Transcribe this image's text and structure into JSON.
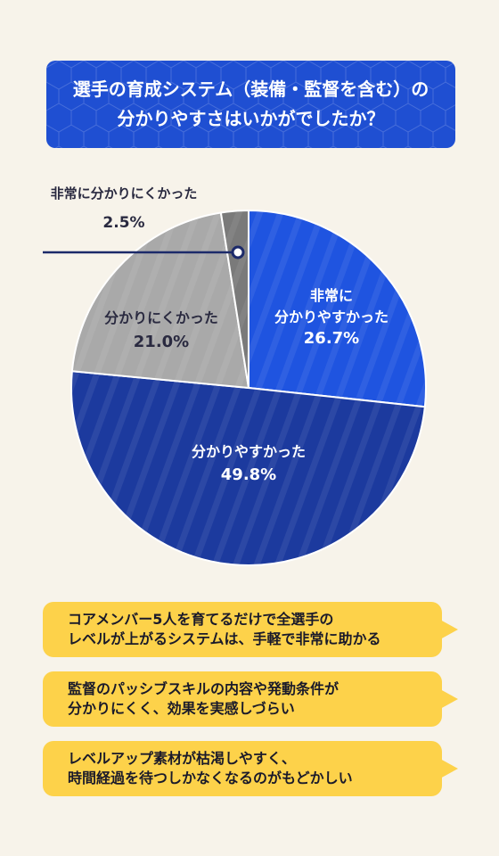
{
  "title": {
    "line1": "選手の育成システム（装備・監督を含む）の",
    "line2": "分かりやすさはいかがでしたか？"
  },
  "chart_data": {
    "type": "pie",
    "slices": [
      {
        "label_lines": [
          "非常に",
          "分かりやすかった"
        ],
        "value": 26.7,
        "value_text": "26.7%",
        "color": "#1f54e0"
      },
      {
        "label_lines": [
          "分かりやすかった"
        ],
        "value": 49.8,
        "value_text": "49.8%",
        "color": "#1c3a9e"
      },
      {
        "label_lines": [
          "分かりにくかった"
        ],
        "value": 21.0,
        "value_text": "21.0%",
        "color": "#a9a9a9"
      },
      {
        "label_lines": [
          "非常に分かりにくかった"
        ],
        "value": 2.5,
        "value_text": "2.5%",
        "color": "#7a7a7a"
      }
    ]
  },
  "comments": [
    {
      "line1": "コアメンバー5人を育てるだけで全選手の",
      "line2": "レベルが上がるシステムは、手軽で非常に助かる"
    },
    {
      "line1": "監督のパッシブスキルの内容や発動条件が",
      "line2": "分かりにくく、効果を実感しづらい"
    },
    {
      "line1": "レベルアップ素材が枯渇しやすく、",
      "line2": "時間経過を待つしかなくなるのがもどかしい"
    }
  ],
  "colors": {
    "accent_blue": "#1f4fd2",
    "bubble_yellow": "#fdd24a",
    "text_dark": "#1a1a2a"
  }
}
